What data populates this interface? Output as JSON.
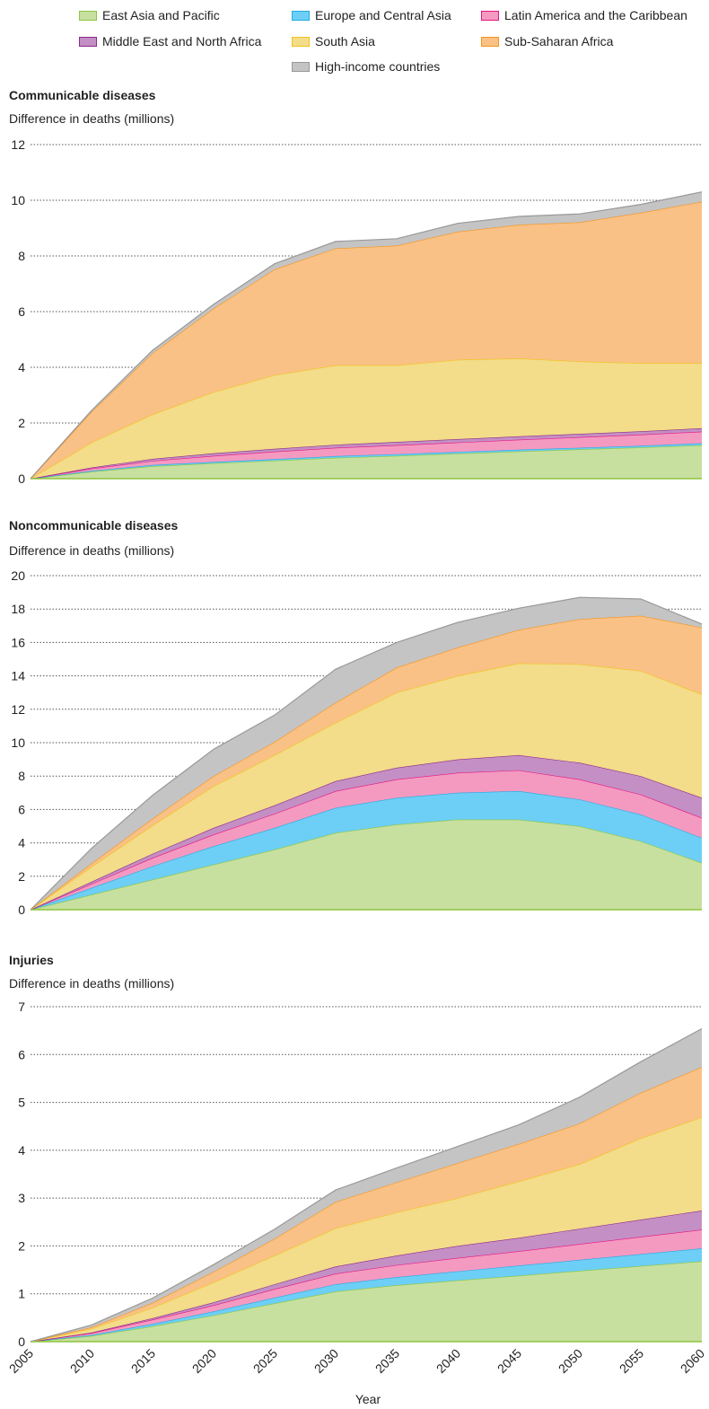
{
  "legend": {
    "items": [
      {
        "key": "eap",
        "label": "East Asia and Pacific",
        "fill": "#c7e0a0",
        "stroke": "#8dc63f"
      },
      {
        "key": "eca",
        "label": "Europe and Central Asia",
        "fill": "#6dcff6",
        "stroke": "#27aae1"
      },
      {
        "key": "lac",
        "label": "Latin America and the Caribbean",
        "fill": "#f49ac1",
        "stroke": "#e6157f"
      },
      {
        "key": "mena",
        "label": "Middle East and North Africa",
        "fill": "#c48fc4",
        "stroke": "#8b2a8b"
      },
      {
        "key": "sa",
        "label": "South Asia",
        "fill": "#f3dc8a",
        "stroke": "#f2c31a"
      },
      {
        "key": "ssa",
        "label": "Sub-Saharan Africa",
        "fill": "#f9c185",
        "stroke": "#f7941d"
      },
      {
        "key": "hic",
        "label": "High-income countries",
        "fill": "#c4c4c4",
        "stroke": "#999999"
      }
    ]
  },
  "xlabel": "Year",
  "chart_data": [
    {
      "type": "area",
      "title": "Communicable diseases",
      "ylabel": "Difference in deaths (millions)",
      "xlabel": "Year",
      "stacked": true,
      "x": [
        2005,
        2010,
        2015,
        2020,
        2025,
        2030,
        2035,
        2040,
        2045,
        2050,
        2055,
        2060
      ],
      "xticks": [
        2005,
        2010,
        2015,
        2020,
        2025,
        2030,
        2035,
        2040,
        2045,
        2050,
        2055,
        2060
      ],
      "yticks": [
        0,
        2,
        4,
        6,
        8,
        10,
        12
      ],
      "ylim": [
        0,
        12
      ],
      "grid": true,
      "series": [
        {
          "name": "East Asia and Pacific",
          "values": [
            0,
            0.25,
            0.45,
            0.55,
            0.65,
            0.75,
            0.82,
            0.9,
            0.98,
            1.05,
            1.12,
            1.2
          ]
        },
        {
          "name": "Europe and Central Asia",
          "values": [
            0,
            0.03,
            0.04,
            0.05,
            0.05,
            0.06,
            0.06,
            0.06,
            0.06,
            0.06,
            0.06,
            0.07
          ]
        },
        {
          "name": "Latin America and the Caribbean",
          "values": [
            0,
            0.08,
            0.15,
            0.22,
            0.27,
            0.3,
            0.32,
            0.34,
            0.36,
            0.38,
            0.4,
            0.42
          ]
        },
        {
          "name": "Middle East and North Africa",
          "values": [
            0,
            0.04,
            0.07,
            0.09,
            0.1,
            0.11,
            0.12,
            0.12,
            0.12,
            0.12,
            0.12,
            0.12
          ]
        },
        {
          "name": "South Asia",
          "values": [
            0,
            0.9,
            1.6,
            2.2,
            2.65,
            2.85,
            2.75,
            2.85,
            2.8,
            2.6,
            2.45,
            2.34
          ]
        },
        {
          "name": "Sub-Saharan Africa",
          "values": [
            0,
            1.1,
            2.2,
            3.0,
            3.8,
            4.2,
            4.3,
            4.6,
            4.8,
            5.0,
            5.4,
            5.8
          ]
        },
        {
          "name": "High-income countries",
          "values": [
            0,
            0.05,
            0.1,
            0.15,
            0.2,
            0.25,
            0.25,
            0.3,
            0.3,
            0.3,
            0.3,
            0.35
          ]
        }
      ]
    },
    {
      "type": "area",
      "title": "Noncommunicable diseases",
      "ylabel": "Difference in deaths (millions)",
      "xlabel": "Year",
      "stacked": true,
      "x": [
        2005,
        2010,
        2015,
        2020,
        2025,
        2030,
        2035,
        2040,
        2045,
        2050,
        2055,
        2060
      ],
      "xticks": [
        2005,
        2010,
        2015,
        2020,
        2025,
        2030,
        2035,
        2040,
        2045,
        2050,
        2055,
        2060
      ],
      "yticks": [
        0,
        2,
        4,
        6,
        8,
        10,
        12,
        14,
        16,
        18,
        20
      ],
      "ylim": [
        0,
        20
      ],
      "grid": true,
      "series": [
        {
          "name": "East Asia and Pacific",
          "values": [
            0,
            0.9,
            1.8,
            2.7,
            3.6,
            4.6,
            5.1,
            5.4,
            5.4,
            5.0,
            4.1,
            2.8
          ]
        },
        {
          "name": "Europe and Central Asia",
          "values": [
            0,
            0.4,
            0.8,
            1.1,
            1.3,
            1.5,
            1.6,
            1.6,
            1.7,
            1.6,
            1.6,
            1.5
          ]
        },
        {
          "name": "Latin America and the Caribbean",
          "values": [
            0,
            0.25,
            0.5,
            0.7,
            0.85,
            1.0,
            1.1,
            1.2,
            1.25,
            1.2,
            1.2,
            1.2
          ]
        },
        {
          "name": "Middle East and North Africa",
          "values": [
            0,
            0.12,
            0.25,
            0.4,
            0.5,
            0.6,
            0.7,
            0.8,
            0.9,
            1.0,
            1.1,
            1.2
          ]
        },
        {
          "name": "South Asia",
          "values": [
            0,
            0.9,
            1.7,
            2.5,
            3.0,
            3.5,
            4.5,
            5.0,
            5.5,
            5.9,
            6.3,
            6.2
          ]
        },
        {
          "name": "Sub-Saharan Africa",
          "values": [
            0,
            0.2,
            0.4,
            0.6,
            0.8,
            1.2,
            1.5,
            1.7,
            2.0,
            2.7,
            3.3,
            4.0
          ]
        },
        {
          "name": "High-income countries",
          "values": [
            0,
            0.9,
            1.4,
            1.6,
            1.6,
            2.0,
            1.5,
            1.5,
            1.3,
            1.3,
            1.0,
            0.2
          ]
        }
      ]
    },
    {
      "type": "area",
      "title": "Injuries",
      "ylabel": "Difference in deaths (millions)",
      "xlabel": "Year",
      "stacked": true,
      "x": [
        2005,
        2010,
        2015,
        2020,
        2025,
        2030,
        2035,
        2040,
        2045,
        2050,
        2055,
        2060
      ],
      "xticks": [
        2005,
        2010,
        2015,
        2020,
        2025,
        2030,
        2035,
        2040,
        2045,
        2050,
        2055,
        2060
      ],
      "yticks": [
        0,
        1,
        2,
        3,
        4,
        5,
        6,
        7
      ],
      "ylim": [
        0,
        7
      ],
      "grid": true,
      "series": [
        {
          "name": "East Asia and Pacific",
          "values": [
            0,
            0.12,
            0.32,
            0.55,
            0.8,
            1.05,
            1.18,
            1.28,
            1.38,
            1.48,
            1.58,
            1.68
          ]
        },
        {
          "name": "Europe and Central Asia",
          "values": [
            0,
            0.02,
            0.05,
            0.08,
            0.12,
            0.15,
            0.17,
            0.19,
            0.21,
            0.23,
            0.25,
            0.27
          ]
        },
        {
          "name": "Latin America and the Caribbean",
          "values": [
            0,
            0.04,
            0.09,
            0.13,
            0.18,
            0.22,
            0.25,
            0.28,
            0.3,
            0.33,
            0.36,
            0.39
          ]
        },
        {
          "name": "Middle East and North Africa",
          "values": [
            0,
            0.01,
            0.03,
            0.06,
            0.1,
            0.15,
            0.2,
            0.25,
            0.28,
            0.32,
            0.36,
            0.4
          ]
        },
        {
          "name": "South Asia",
          "values": [
            0,
            0.08,
            0.22,
            0.42,
            0.6,
            0.8,
            0.9,
            1.0,
            1.18,
            1.35,
            1.7,
            1.95
          ]
        },
        {
          "name": "Sub-Saharan Africa",
          "values": [
            0,
            0.03,
            0.1,
            0.22,
            0.35,
            0.55,
            0.63,
            0.73,
            0.78,
            0.85,
            0.95,
            1.05
          ]
        },
        {
          "name": "High-income countries",
          "values": [
            0,
            0.05,
            0.1,
            0.15,
            0.2,
            0.25,
            0.3,
            0.35,
            0.4,
            0.55,
            0.65,
            0.8
          ]
        }
      ]
    }
  ]
}
